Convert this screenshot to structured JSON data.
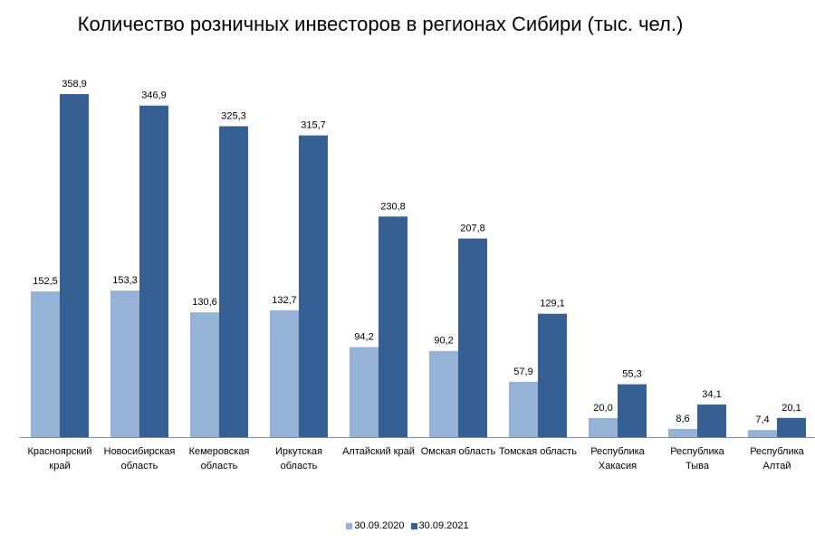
{
  "chart_data": {
    "type": "bar",
    "title": "Количество розничных инвесторов в регионах Сибири (тыс. чел.)",
    "categories": [
      [
        "Красноярский",
        "край"
      ],
      [
        "Новосибирская",
        "область"
      ],
      [
        "Кемеровская",
        "область"
      ],
      [
        "Иркутская",
        "область"
      ],
      [
        "Алтайский край"
      ],
      [
        "Омская область"
      ],
      [
        "Томская область"
      ],
      [
        "Республика",
        "Хакасия"
      ],
      [
        "Республика",
        "Тыва"
      ],
      [
        "Республика",
        "Алтай"
      ]
    ],
    "series": [
      {
        "name": "30.09.2020",
        "color": "#95B3D7",
        "values": [
          152.5,
          153.3,
          130.6,
          132.7,
          94.2,
          90.2,
          57.9,
          20.0,
          8.6,
          7.4
        ],
        "labels": [
          "152,5",
          "153,3",
          "130,6",
          "132,7",
          "94,2",
          "90,2",
          "57,9",
          "20,0",
          "8,6",
          "7,4"
        ]
      },
      {
        "name": "30.09.2021",
        "color": "#376092",
        "values": [
          358.9,
          346.9,
          325.3,
          315.7,
          230.8,
          207.8,
          129.1,
          55.3,
          34.1,
          20.1
        ],
        "labels": [
          "358,9",
          "346,9",
          "325,3",
          "315,7",
          "230,8",
          "207,8",
          "129,1",
          "55,3",
          "34,1",
          "20,1"
        ]
      }
    ],
    "ylim": [
      0,
      358.9
    ],
    "legend_position": "bottom",
    "grid": false
  }
}
